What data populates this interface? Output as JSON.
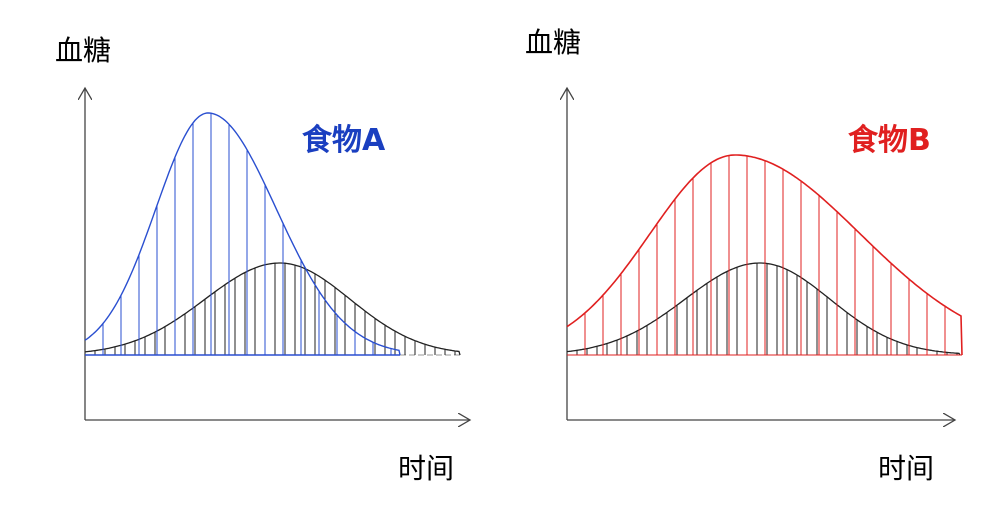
{
  "panels": [
    {
      "y_label": "血糖",
      "x_label": "时间",
      "label": "食物A"
    },
    {
      "y_label": "血糖",
      "x_label": "时间",
      "label": "食物B"
    }
  ]
}
